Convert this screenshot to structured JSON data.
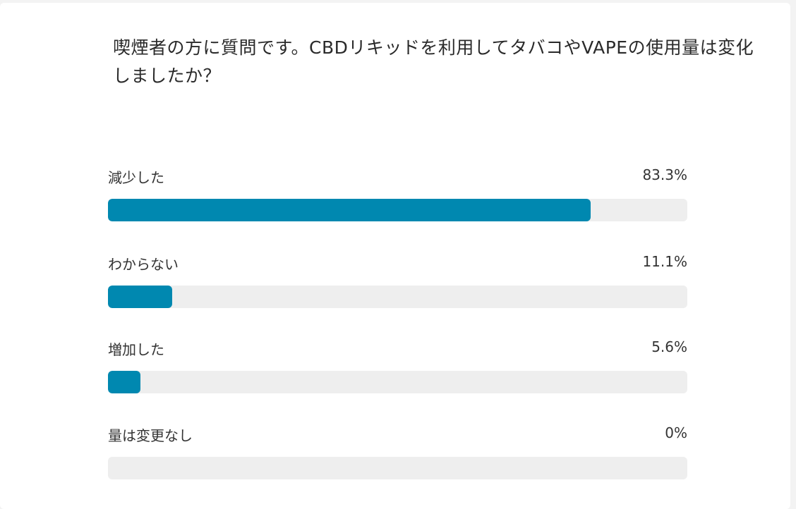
{
  "poll": {
    "question": "喫煙者の方に質問です。CBDリキッドを利用してタバコやVAPEの使用量は変化しましたか？",
    "accent_color": "#0088b0",
    "track_color": "#eeeeee",
    "options": [
      {
        "label": "減少した",
        "percent_text": "83.3%",
        "percent": 83.3
      },
      {
        "label": "わからない",
        "percent_text": "11.1%",
        "percent": 11.1
      },
      {
        "label": "増加した",
        "percent_text": "5.6%",
        "percent": 5.6
      },
      {
        "label": "量は変更なし",
        "percent_text": "0%",
        "percent": 0
      }
    ]
  }
}
